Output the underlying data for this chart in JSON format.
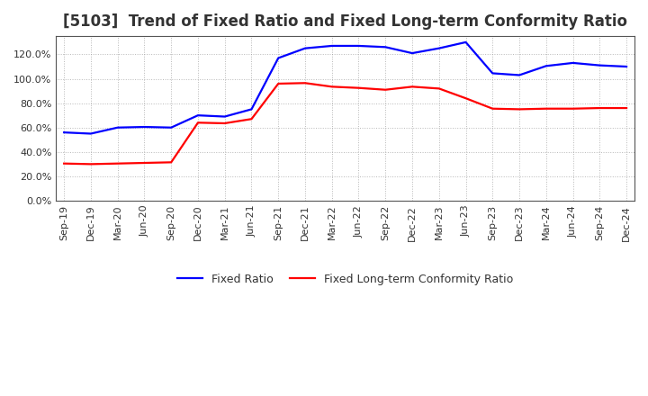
{
  "title": "[5103]  Trend of Fixed Ratio and Fixed Long-term Conformity Ratio",
  "title_fontsize": 12,
  "title_color": "#333333",
  "fixed_ratio": {
    "label": "Fixed Ratio",
    "color": "#0000FF",
    "dates": [
      "Sep-19",
      "Dec-19",
      "Mar-20",
      "Jun-20",
      "Sep-20",
      "Dec-20",
      "Mar-21",
      "Jun-21",
      "Sep-21",
      "Dec-21",
      "Mar-22",
      "Jun-22",
      "Sep-22",
      "Dec-22",
      "Mar-23",
      "Jun-23",
      "Sep-23",
      "Dec-23",
      "Mar-24",
      "Jun-24",
      "Sep-24",
      "Dec-24"
    ],
    "values": [
      56.0,
      55.0,
      60.0,
      60.5,
      60.0,
      70.0,
      69.0,
      75.0,
      117.0,
      125.0,
      127.0,
      127.0,
      126.0,
      121.0,
      125.0,
      130.0,
      104.5,
      103.0,
      110.5,
      113.0,
      111.0,
      110.0
    ]
  },
  "fixed_lt_ratio": {
    "label": "Fixed Long-term Conformity Ratio",
    "color": "#FF0000",
    "dates": [
      "Sep-19",
      "Dec-19",
      "Mar-20",
      "Jun-20",
      "Sep-20",
      "Dec-20",
      "Mar-21",
      "Jun-21",
      "Sep-21",
      "Dec-21",
      "Mar-22",
      "Jun-22",
      "Sep-22",
      "Dec-22",
      "Mar-23",
      "Jun-23",
      "Sep-23",
      "Dec-23",
      "Mar-24",
      "Jun-24",
      "Sep-24",
      "Dec-24"
    ],
    "values": [
      30.5,
      30.0,
      30.5,
      31.0,
      31.5,
      64.0,
      63.5,
      67.0,
      96.0,
      96.5,
      93.5,
      92.5,
      91.0,
      93.5,
      92.0,
      84.0,
      75.5,
      75.0,
      75.5,
      75.5,
      76.0,
      76.0
    ]
  },
  "ylim": [
    0,
    135
  ],
  "yticks": [
    0,
    20,
    40,
    60,
    80,
    100,
    120
  ],
  "ytick_labels": [
    "0.0%",
    "20.0%",
    "40.0%",
    "60.0%",
    "80.0%",
    "100.0%",
    "120.0%"
  ],
  "background_color": "#FFFFFF",
  "plot_bg_color": "#FFFFFF",
  "grid_color": "#999999",
  "legend_fontsize": 9,
  "axis_fontsize": 8,
  "tick_color": "#333333"
}
